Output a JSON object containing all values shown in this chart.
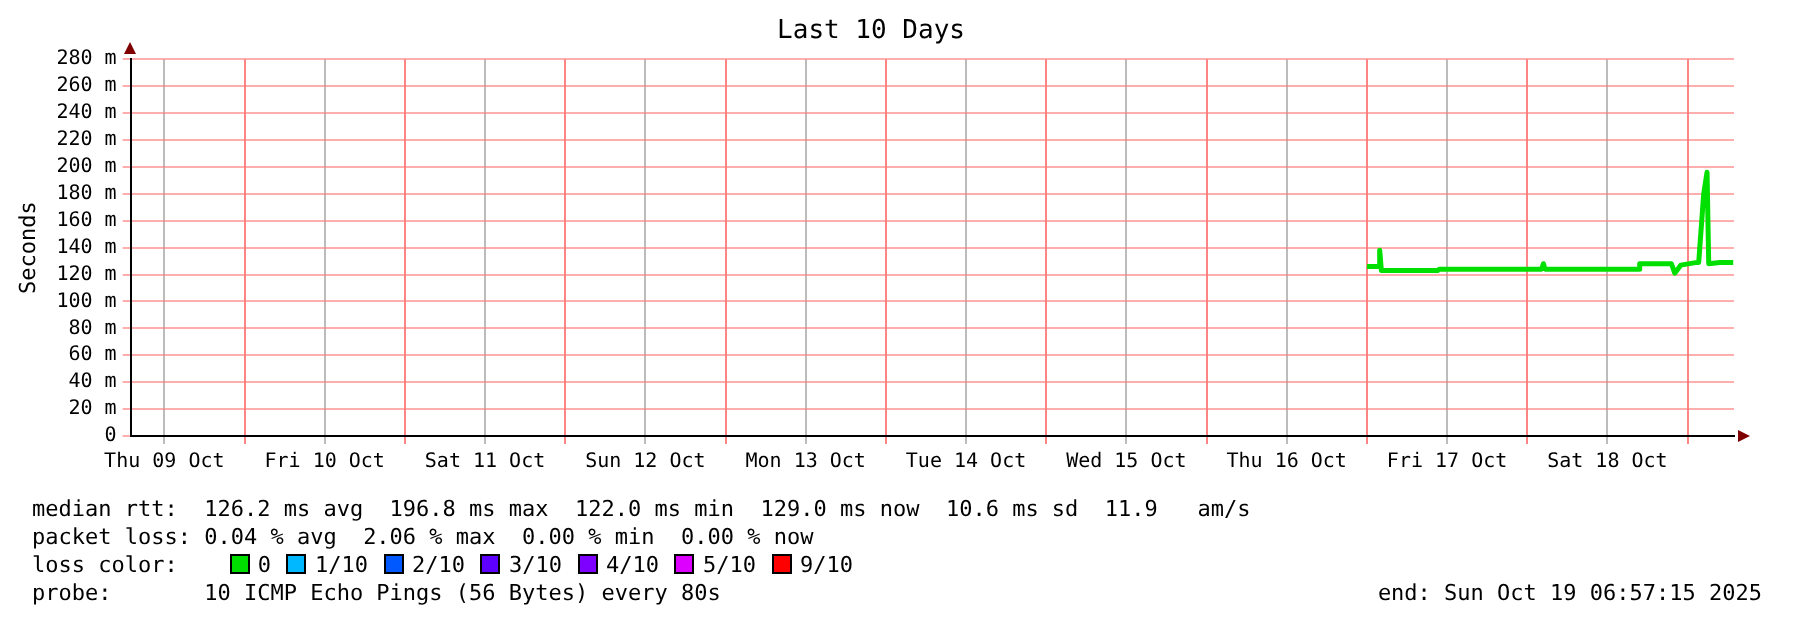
{
  "chart_data": {
    "type": "line",
    "title": "Last 10 Days",
    "ylabel": "Seconds",
    "x": [
      "2025-10-17T00:00",
      "2025-10-17T01:40",
      "2025-10-17T01:55",
      "2025-10-17T02:10",
      "2025-10-17T10:35",
      "2025-10-17T10:50",
      "2025-10-18T02:10",
      "2025-10-18T02:25",
      "2025-10-18T02:40",
      "2025-10-18T16:35",
      "2025-10-18T16:50",
      "2025-10-18T21:35",
      "2025-10-18T22:05",
      "2025-10-18T23:00",
      "2025-10-19T01:25",
      "2025-10-19T01:40",
      "2025-10-19T02:25",
      "2025-10-19T02:55",
      "2025-10-19T03:10",
      "2025-10-19T04:50",
      "2025-10-19T06:50"
    ],
    "series": [
      {
        "name": "0",
        "color": "#00e000",
        "values": [
          126,
          126,
          138,
          123,
          123,
          124,
          124,
          128,
          124,
          124,
          128,
          128,
          121,
          127,
          129,
          129,
          180,
          196,
          128,
          129,
          129
        ]
      },
      {
        "name": "1/10",
        "color": "#00b8ff",
        "values": [
          null,
          null,
          null,
          null,
          null,
          null,
          null,
          null,
          null,
          null,
          null,
          null,
          null,
          null,
          null,
          null,
          null,
          null,
          null,
          null,
          null
        ]
      },
      {
        "name": "2/10",
        "color": "#0059ff",
        "values": [
          null,
          null,
          null,
          null,
          null,
          null,
          null,
          null,
          null,
          null,
          null,
          null,
          null,
          null,
          null,
          null,
          null,
          null,
          null,
          null,
          null
        ]
      },
      {
        "name": "3/10",
        "color": "#5e00ff",
        "values": [
          null,
          null,
          null,
          null,
          null,
          null,
          null,
          null,
          null,
          null,
          null,
          null,
          null,
          null,
          null,
          null,
          null,
          null,
          null,
          null,
          null
        ]
      },
      {
        "name": "4/10",
        "color": "#7e00ff",
        "values": [
          null,
          null,
          null,
          null,
          null,
          null,
          null,
          null,
          null,
          null,
          null,
          null,
          null,
          null,
          null,
          null,
          null,
          null,
          null,
          null,
          null
        ]
      },
      {
        "name": "5/10",
        "color": "#dd00ff",
        "values": [
          null,
          null,
          null,
          null,
          null,
          null,
          null,
          null,
          null,
          null,
          null,
          null,
          null,
          null,
          null,
          null,
          null,
          null,
          null,
          null,
          null
        ]
      },
      {
        "name": "9/10",
        "color": "#ff0000",
        "values": [
          null,
          null,
          null,
          null,
          null,
          null,
          null,
          null,
          null,
          null,
          null,
          null,
          null,
          null,
          null,
          null,
          null,
          null,
          null,
          null,
          null
        ]
      }
    ],
    "legend": "bottom",
    "legend_title": "loss color:",
    "marker": "none",
    "line_style": "solid",
    "grid": true,
    "xlim": [
      "2025-10-09T06:57",
      "2025-10-19T06:57"
    ],
    "xticks": [
      {
        "value": "2025-10-09T12:00",
        "label": "Thu 09 Oct"
      },
      {
        "value": "2025-10-10",
        "label": null
      },
      {
        "value": "2025-10-10T12:00",
        "label": "Fri 10 Oct"
      },
      {
        "value": "2025-10-11",
        "label": null
      },
      {
        "value": "2025-10-11T12:00",
        "label": "Sat 11 Oct"
      },
      {
        "value": "2025-10-12",
        "label": null
      },
      {
        "value": "2025-10-12T12:00",
        "label": "Sun 12 Oct"
      },
      {
        "value": "2025-10-13",
        "label": null
      },
      {
        "value": "2025-10-13T12:00",
        "label": "Mon 13 Oct"
      },
      {
        "value": "2025-10-14",
        "label": null
      },
      {
        "value": "2025-10-14T12:00",
        "label": "Tue 14 Oct"
      },
      {
        "value": "2025-10-15",
        "label": null
      },
      {
        "value": "2025-10-15T12:00",
        "label": "Wed 15 Oct"
      },
      {
        "value": "2025-10-16",
        "label": null
      },
      {
        "value": "2025-10-16T12:00",
        "label": "Thu 16 Oct"
      },
      {
        "value": "2025-10-17",
        "label": null
      },
      {
        "value": "2025-10-17T12:00",
        "label": "Fri 17 Oct"
      },
      {
        "value": "2025-10-18",
        "label": null
      },
      {
        "value": "2025-10-18T12:00",
        "label": "Sat 18 Oct"
      },
      {
        "value": "2025-10-19",
        "label": null
      }
    ],
    "ylim": [
      0,
      280
    ],
    "yticks": [
      0,
      {
        "value": 20,
        "label": "20 m"
      },
      {
        "value": 40,
        "label": "40 m"
      },
      {
        "value": 60,
        "label": "60 m"
      },
      {
        "value": 80,
        "label": "80 m"
      },
      {
        "value": 100,
        "label": "100 m"
      },
      {
        "value": 120,
        "label": "120 m"
      },
      {
        "value": 140,
        "label": "140 m"
      },
      {
        "value": 160,
        "label": "160 m"
      },
      {
        "value": 180,
        "label": "180 m"
      },
      {
        "value": 200,
        "label": "200 m"
      },
      {
        "value": 220,
        "label": "220 m"
      },
      {
        "value": 240,
        "label": "240 m"
      },
      {
        "value": 260,
        "label": "260 m"
      },
      {
        "value": 280,
        "label": "280 m"
      }
    ],
    "annotations": [
      "median rtt:  126.2 ms avg  196.8 ms max  122.0 ms min  129.0 ms now  10.6 ms sd  11.9   am/s",
      "packet loss: 0.04 % avg  2.06 % max  0.00 % min  0.00 % now",
      "probe:       10 ICMP Echo Pings (56 Bytes) every 80s",
      "end: Sun Oct 19 06:57:15 2025"
    ]
  }
}
